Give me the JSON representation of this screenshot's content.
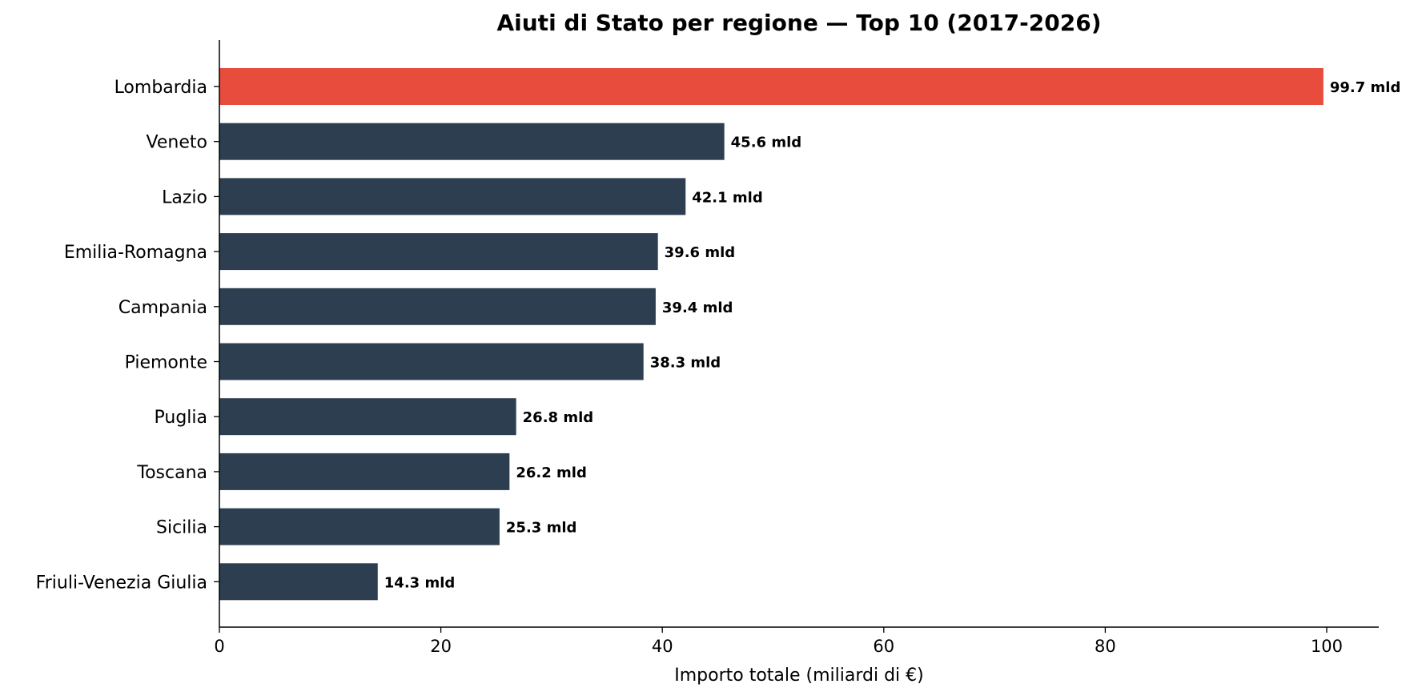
{
  "chart_data": {
    "type": "bar",
    "orientation": "horizontal",
    "title": "Aiuti di Stato per regione — Top 10 (2017-2026)",
    "xlabel": "Importo totale (miliardi di €)",
    "ylabel": "",
    "xlim": [
      0,
      104.7
    ],
    "xticks": [
      0,
      20,
      40,
      60,
      80,
      100
    ],
    "grid": false,
    "legend": "none",
    "categories": [
      "Lombardia",
      "Veneto",
      "Lazio",
      "Emilia-Romagna",
      "Campania",
      "Piemonte",
      "Puglia",
      "Toscana",
      "Sicilia",
      "Friuli-Venezia Giulia"
    ],
    "values": [
      99.7,
      45.6,
      42.1,
      39.6,
      39.4,
      38.3,
      26.8,
      26.2,
      25.3,
      14.3
    ],
    "value_labels": [
      "99.7 mld",
      "45.6 mld",
      "42.1 mld",
      "39.6 mld",
      "39.4 mld",
      "38.3 mld",
      "26.8 mld",
      "26.2 mld",
      "25.3 mld",
      "14.3 mld"
    ],
    "colors": {
      "highlight": "#e74c3c",
      "default": "#2c3e50",
      "axis": "#000000"
    },
    "highlight_index": 0
  }
}
